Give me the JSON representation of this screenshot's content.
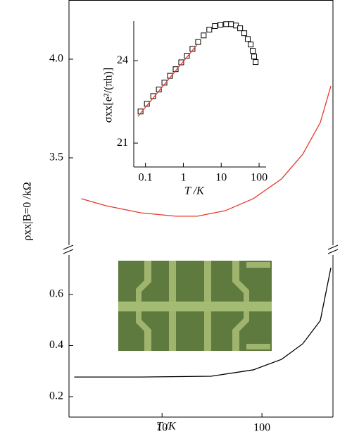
{
  "chart_data": [
    {
      "type": "line",
      "ylabel": "ρxx|B=0 /kΩ",
      "xscale": "log",
      "xlim": [
        1.17,
        514
      ],
      "ylim": [
        3.05,
        4.3
      ],
      "yticks": [
        {
          "value": 4,
          "label": "4.0"
        },
        3.5
      ],
      "series": [
        {
          "color": "#e8382a",
          "x": [
            1.55,
            2.74,
            6.15,
            13.8,
            22.5,
            43,
            82,
            157,
            256,
            384,
            490
          ],
          "values": [
            3.293,
            3.257,
            3.221,
            3.204,
            3.204,
            3.232,
            3.293,
            3.393,
            3.518,
            3.679,
            3.864
          ]
        }
      ]
    },
    {
      "type": "line",
      "xlabel": "T /K",
      "xscale": "log",
      "xlim": [
        1.17,
        514
      ],
      "xticks": [
        10,
        100
      ],
      "ylim": [
        0.12,
        0.76
      ],
      "yticks": [
        0.6,
        0.4,
        0.2
      ],
      "series": [
        {
          "color": "#000000",
          "x": [
            1.32,
            6.15,
            31,
            82,
            157,
            256,
            384,
            490
          ],
          "values": [
            0.277,
            0.277,
            0.28,
            0.305,
            0.346,
            0.407,
            0.498,
            0.705
          ]
        }
      ]
    },
    {
      "type": "line",
      "xlabel": "T /K",
      "ylabel": "σxx[e²/(πh)]",
      "xscale": "log",
      "xlim": [
        0.049,
        153
      ],
      "xticks": [
        0.1,
        1,
        10,
        100
      ],
      "ylim": [
        20.13,
        25.44
      ],
      "yticks": [
        21,
        24
      ],
      "series": [
        {
          "color": "#000000",
          "marker": "square",
          "x": [
            0.074,
            0.109,
            0.16,
            0.225,
            0.316,
            0.445,
            0.625,
            0.88,
            1.24,
            1.74,
            2.45,
            3.44,
            4.84,
            6.81,
            9.58,
            13.5,
            18.2,
            24.5,
            31.6,
            40.7,
            50.2,
            60,
            68,
            74,
            81
          ],
          "values": [
            22.15,
            22.43,
            22.71,
            22.95,
            23.2,
            23.45,
            23.69,
            23.94,
            24.18,
            24.43,
            24.68,
            24.92,
            25.13,
            25.26,
            25.31,
            25.33,
            25.33,
            25.28,
            25.18,
            25.0,
            24.79,
            24.59,
            24.36,
            24.15,
            23.95
          ]
        },
        {
          "color": "#e8382a",
          "x": [
            0.063,
            2.34
          ],
          "values": [
            21.97,
            24.59
          ]
        }
      ]
    }
  ]
}
